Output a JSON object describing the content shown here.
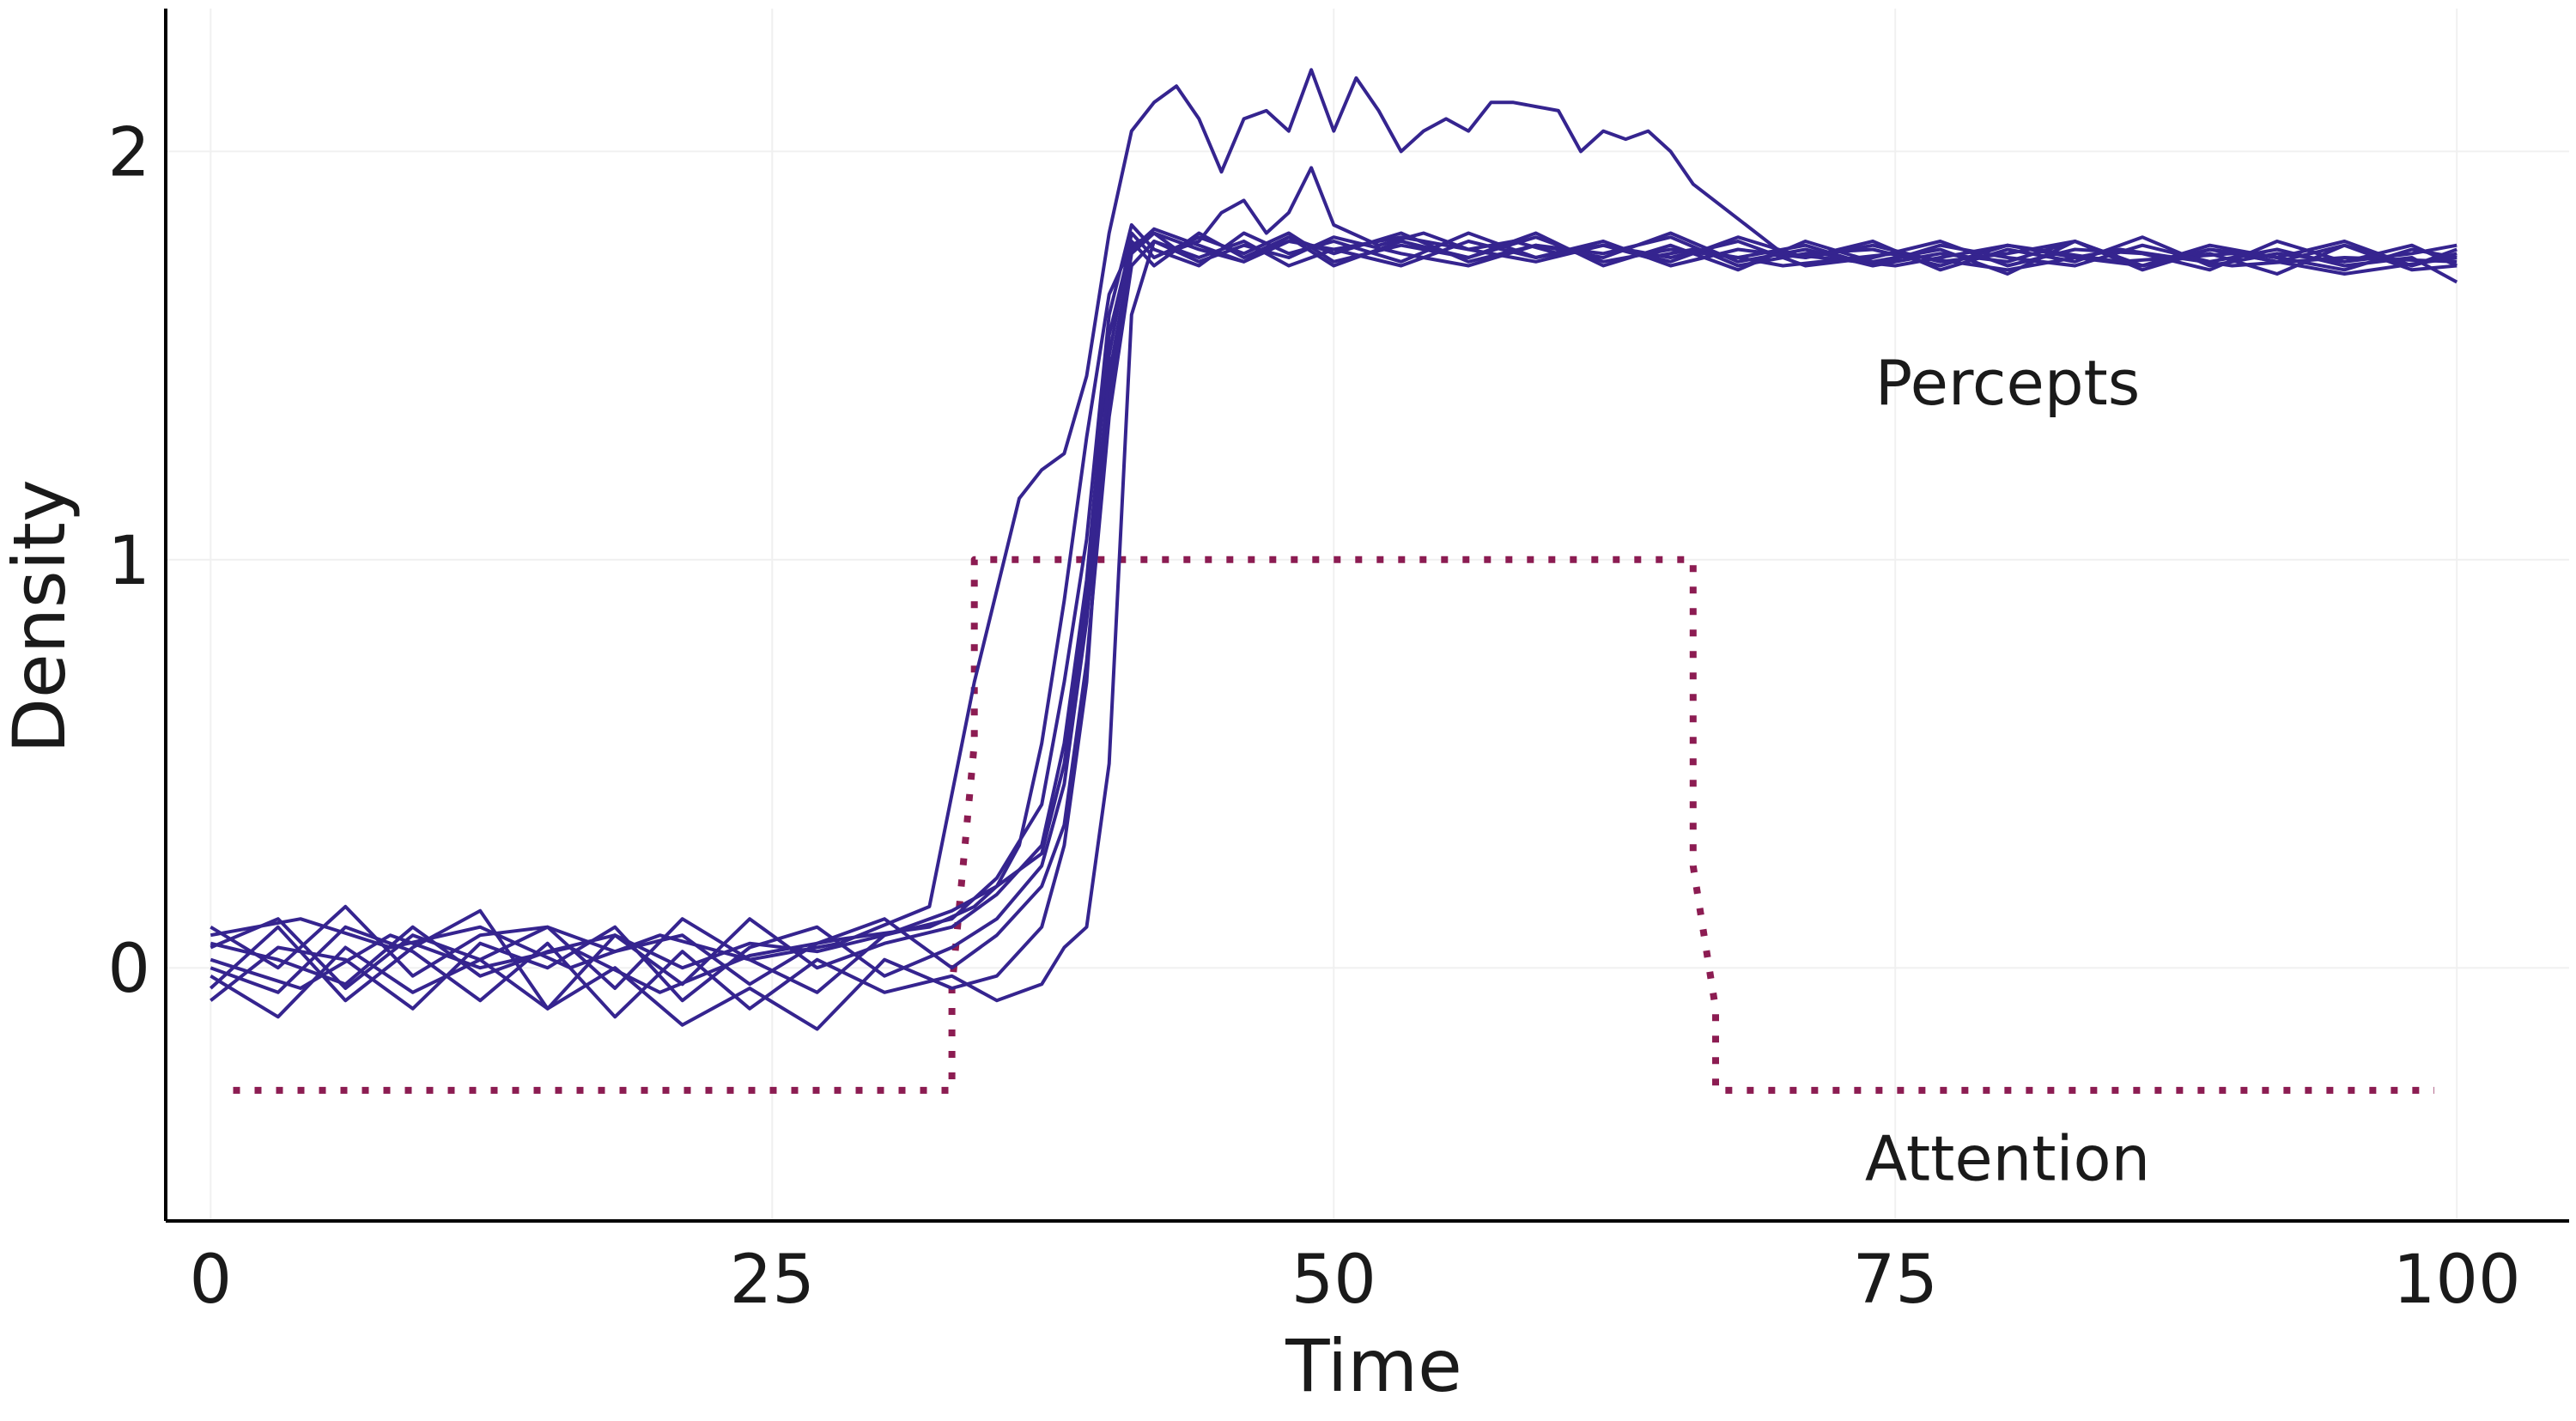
{
  "chart_data": {
    "type": "line",
    "xlabel": "Time",
    "ylabel": "Density",
    "xlim": [
      -2,
      105
    ],
    "ylim": [
      -0.62,
      2.35
    ],
    "x_ticks": [
      "0",
      "25",
      "50",
      "75",
      "100"
    ],
    "x_tick_values": [
      0,
      25,
      50,
      75,
      100
    ],
    "y_ticks": [
      "0",
      "1",
      "2"
    ],
    "y_tick_values": [
      0,
      1,
      2
    ],
    "grid": true,
    "colors": {
      "percepts": "#35248f",
      "attention": "#8c1c52",
      "axis": "#000000",
      "grid": "#f0f0f0"
    },
    "annotations": [
      {
        "text": "Percepts",
        "x": 80,
        "y": 1.38
      },
      {
        "text": "Attention",
        "x": 80,
        "y": -0.52
      }
    ],
    "series": [
      {
        "role": "attention",
        "style": "dotted",
        "x": [
          1,
          33,
          33,
          34,
          34,
          66,
          66,
          67,
          67,
          99
        ],
        "y": [
          -0.3,
          -0.3,
          -0.05,
          0.55,
          1.0,
          1.0,
          0.25,
          -0.1,
          -0.3,
          -0.3
        ]
      },
      {
        "role": "percept",
        "x": [
          0,
          4,
          8,
          12,
          16,
          20,
          24,
          28,
          32,
          34,
          36,
          37,
          38,
          39,
          40,
          41,
          42,
          43,
          44,
          45,
          46,
          47,
          48,
          49,
          50,
          51,
          52,
          53,
          54,
          55,
          56,
          57,
          58,
          59,
          60,
          61,
          62,
          63,
          64,
          65,
          66,
          70,
          75,
          80,
          85,
          90,
          95,
          100
        ],
        "y": [
          0.08,
          0.12,
          0.05,
          0.1,
          0.0,
          0.08,
          0.02,
          0.06,
          0.15,
          0.7,
          1.15,
          1.22,
          1.26,
          1.45,
          1.8,
          2.05,
          2.12,
          2.16,
          2.08,
          1.95,
          2.08,
          2.1,
          2.05,
          2.2,
          2.05,
          2.18,
          2.1,
          2.0,
          2.05,
          2.08,
          2.05,
          2.12,
          2.12,
          2.11,
          2.1,
          2.0,
          2.05,
          2.03,
          2.05,
          2.0,
          1.92,
          1.75,
          1.72,
          1.77,
          1.73,
          1.75,
          1.7,
          1.74
        ]
      },
      {
        "role": "percept",
        "x": [
          0,
          4,
          8,
          12,
          16,
          20,
          24,
          28,
          32,
          34,
          35,
          36,
          37,
          38,
          39,
          40,
          41,
          42,
          43,
          44,
          45,
          46,
          47,
          48,
          49,
          50,
          52,
          54,
          56,
          58,
          60,
          62,
          64,
          66,
          70,
          75,
          80,
          85,
          90,
          95,
          100
        ],
        "y": [
          0.02,
          -0.05,
          0.08,
          0.0,
          0.05,
          -0.06,
          0.03,
          0.07,
          0.1,
          0.15,
          0.2,
          0.3,
          0.55,
          0.9,
          1.3,
          1.65,
          1.77,
          1.8,
          1.76,
          1.78,
          1.85,
          1.88,
          1.8,
          1.85,
          1.96,
          1.82,
          1.77,
          1.8,
          1.76,
          1.78,
          1.75,
          1.77,
          1.74,
          1.76,
          1.72,
          1.75,
          1.71,
          1.76,
          1.72,
          1.74,
          1.73
        ]
      },
      {
        "role": "percept",
        "x": [
          0,
          3,
          6,
          9,
          12,
          15,
          18,
          21,
          24,
          27,
          30,
          33,
          35,
          37,
          38,
          39,
          40,
          41,
          42,
          44,
          46,
          48,
          50,
          53,
          56,
          59,
          62,
          65,
          68,
          71,
          74,
          77,
          80,
          83,
          86,
          89,
          92,
          95,
          98,
          100
        ],
        "y": [
          -0.05,
          0.1,
          -0.08,
          0.05,
          0.14,
          -0.1,
          0.08,
          -0.04,
          0.12,
          0.0,
          0.06,
          0.1,
          0.18,
          0.3,
          0.55,
          0.95,
          1.55,
          1.78,
          1.72,
          1.8,
          1.74,
          1.79,
          1.72,
          1.78,
          1.74,
          1.8,
          1.72,
          1.77,
          1.71,
          1.78,
          1.73,
          1.76,
          1.7,
          1.78,
          1.72,
          1.75,
          1.7,
          1.77,
          1.72,
          1.75
        ]
      },
      {
        "role": "percept",
        "x": [
          0,
          3,
          6,
          9,
          12,
          15,
          18,
          21,
          24,
          27,
          30,
          33,
          35,
          37,
          38,
          39,
          40,
          41,
          42,
          44,
          46,
          48,
          50,
          53,
          56,
          59,
          62,
          65,
          68,
          71,
          74,
          77,
          80,
          83,
          86,
          89,
          92,
          95,
          98,
          100
        ],
        "y": [
          0.1,
          0.0,
          0.15,
          -0.02,
          0.08,
          0.1,
          -0.05,
          0.12,
          0.02,
          -0.06,
          0.08,
          0.12,
          0.22,
          0.4,
          0.7,
          1.05,
          1.6,
          1.82,
          1.76,
          1.72,
          1.8,
          1.75,
          1.78,
          1.73,
          1.8,
          1.74,
          1.78,
          1.72,
          1.76,
          1.74,
          1.78,
          1.71,
          1.76,
          1.73,
          1.79,
          1.72,
          1.75,
          1.73,
          1.77,
          1.72
        ]
      },
      {
        "role": "percept",
        "x": [
          0,
          3,
          6,
          9,
          12,
          15,
          18,
          21,
          24,
          27,
          30,
          33,
          35,
          37,
          38,
          39,
          40,
          41,
          42,
          44,
          46,
          48,
          50,
          53,
          56,
          59,
          62,
          65,
          68,
          71,
          74,
          77,
          80,
          83,
          86,
          89,
          92,
          95,
          98,
          100
        ],
        "y": [
          -0.08,
          0.05,
          0.02,
          -0.1,
          0.06,
          0.0,
          0.1,
          -0.08,
          0.05,
          0.1,
          -0.02,
          0.05,
          0.12,
          0.25,
          0.45,
          0.85,
          1.4,
          1.75,
          1.8,
          1.76,
          1.73,
          1.79,
          1.75,
          1.8,
          1.73,
          1.77,
          1.75,
          1.79,
          1.72,
          1.75,
          1.76,
          1.72,
          1.77,
          1.74,
          1.72,
          1.77,
          1.74,
          1.71,
          1.76,
          1.74
        ]
      },
      {
        "role": "percept",
        "x": [
          0,
          3,
          6,
          9,
          12,
          15,
          18,
          21,
          24,
          27,
          30,
          33,
          35,
          37,
          38,
          39,
          40,
          41,
          42,
          44,
          46,
          48,
          50,
          53,
          56,
          59,
          62,
          65,
          68,
          71,
          74,
          77,
          80,
          83,
          86,
          89,
          92,
          95,
          98,
          100
        ],
        "y": [
          0.05,
          0.12,
          -0.05,
          0.08,
          0.02,
          0.1,
          0.04,
          0.08,
          -0.04,
          0.06,
          0.12,
          0.0,
          0.08,
          0.2,
          0.35,
          0.75,
          1.35,
          1.72,
          1.78,
          1.74,
          1.78,
          1.72,
          1.76,
          1.79,
          1.76,
          1.73,
          1.77,
          1.74,
          1.78,
          1.72,
          1.74,
          1.78,
          1.72,
          1.76,
          1.75,
          1.71,
          1.78,
          1.73,
          1.75,
          1.77
        ]
      },
      {
        "role": "percept",
        "x": [
          0,
          3,
          6,
          9,
          12,
          15,
          18,
          21,
          24,
          27,
          30,
          33,
          35,
          37,
          38,
          39,
          40,
          41,
          42,
          44,
          46,
          48,
          50,
          53,
          56,
          59,
          62,
          65,
          68,
          71,
          74,
          77,
          80,
          83,
          86,
          89,
          92,
          95,
          98,
          100
        ],
        "y": [
          -0.02,
          -0.12,
          0.05,
          -0.06,
          0.02,
          -0.1,
          0.0,
          -0.14,
          -0.05,
          -0.15,
          0.02,
          -0.05,
          -0.02,
          0.1,
          0.3,
          0.7,
          1.5,
          1.8,
          1.74,
          1.79,
          1.75,
          1.8,
          1.73,
          1.77,
          1.74,
          1.79,
          1.73,
          1.76,
          1.74,
          1.77,
          1.72,
          1.75,
          1.73,
          1.78,
          1.71,
          1.76,
          1.73,
          1.77,
          1.71,
          1.72
        ]
      },
      {
        "role": "percept",
        "x": [
          0,
          3,
          6,
          9,
          12,
          15,
          18,
          21,
          24,
          27,
          30,
          33,
          35,
          37,
          38,
          39,
          40,
          41,
          42,
          44,
          46,
          48,
          50,
          53,
          56,
          59,
          62,
          65,
          68,
          71,
          74,
          77,
          80,
          83,
          86,
          89,
          92,
          95,
          98,
          100
        ],
        "y": [
          0.0,
          -0.06,
          0.1,
          0.04,
          -0.08,
          0.06,
          -0.12,
          0.04,
          -0.1,
          0.02,
          -0.06,
          -0.02,
          -0.08,
          -0.04,
          0.05,
          0.1,
          0.5,
          1.6,
          1.78,
          1.73,
          1.77,
          1.74,
          1.79,
          1.75,
          1.72,
          1.77,
          1.74,
          1.8,
          1.73,
          1.76,
          1.72,
          1.77,
          1.74,
          1.72,
          1.77,
          1.73,
          1.76,
          1.72,
          1.74,
          1.68
        ]
      },
      {
        "role": "percept",
        "x": [
          0,
          3,
          6,
          9,
          12,
          15,
          18,
          21,
          24,
          27,
          30,
          33,
          35,
          37,
          38,
          39,
          40,
          41,
          42,
          44,
          46,
          48,
          50,
          53,
          56,
          59,
          62,
          65,
          68,
          71,
          74,
          77,
          80,
          83,
          86,
          89,
          92,
          95,
          98,
          100
        ],
        "y": [
          0.06,
          0.02,
          -0.04,
          0.1,
          -0.02,
          0.04,
          0.08,
          0.0,
          0.06,
          0.04,
          0.08,
          0.14,
          0.2,
          0.28,
          0.5,
          0.9,
          1.45,
          1.76,
          1.81,
          1.77,
          1.73,
          1.78,
          1.76,
          1.72,
          1.78,
          1.74,
          1.77,
          1.73,
          1.79,
          1.74,
          1.77,
          1.73,
          1.75,
          1.78,
          1.72,
          1.76,
          1.74,
          1.78,
          1.72,
          1.76
        ]
      }
    ]
  }
}
